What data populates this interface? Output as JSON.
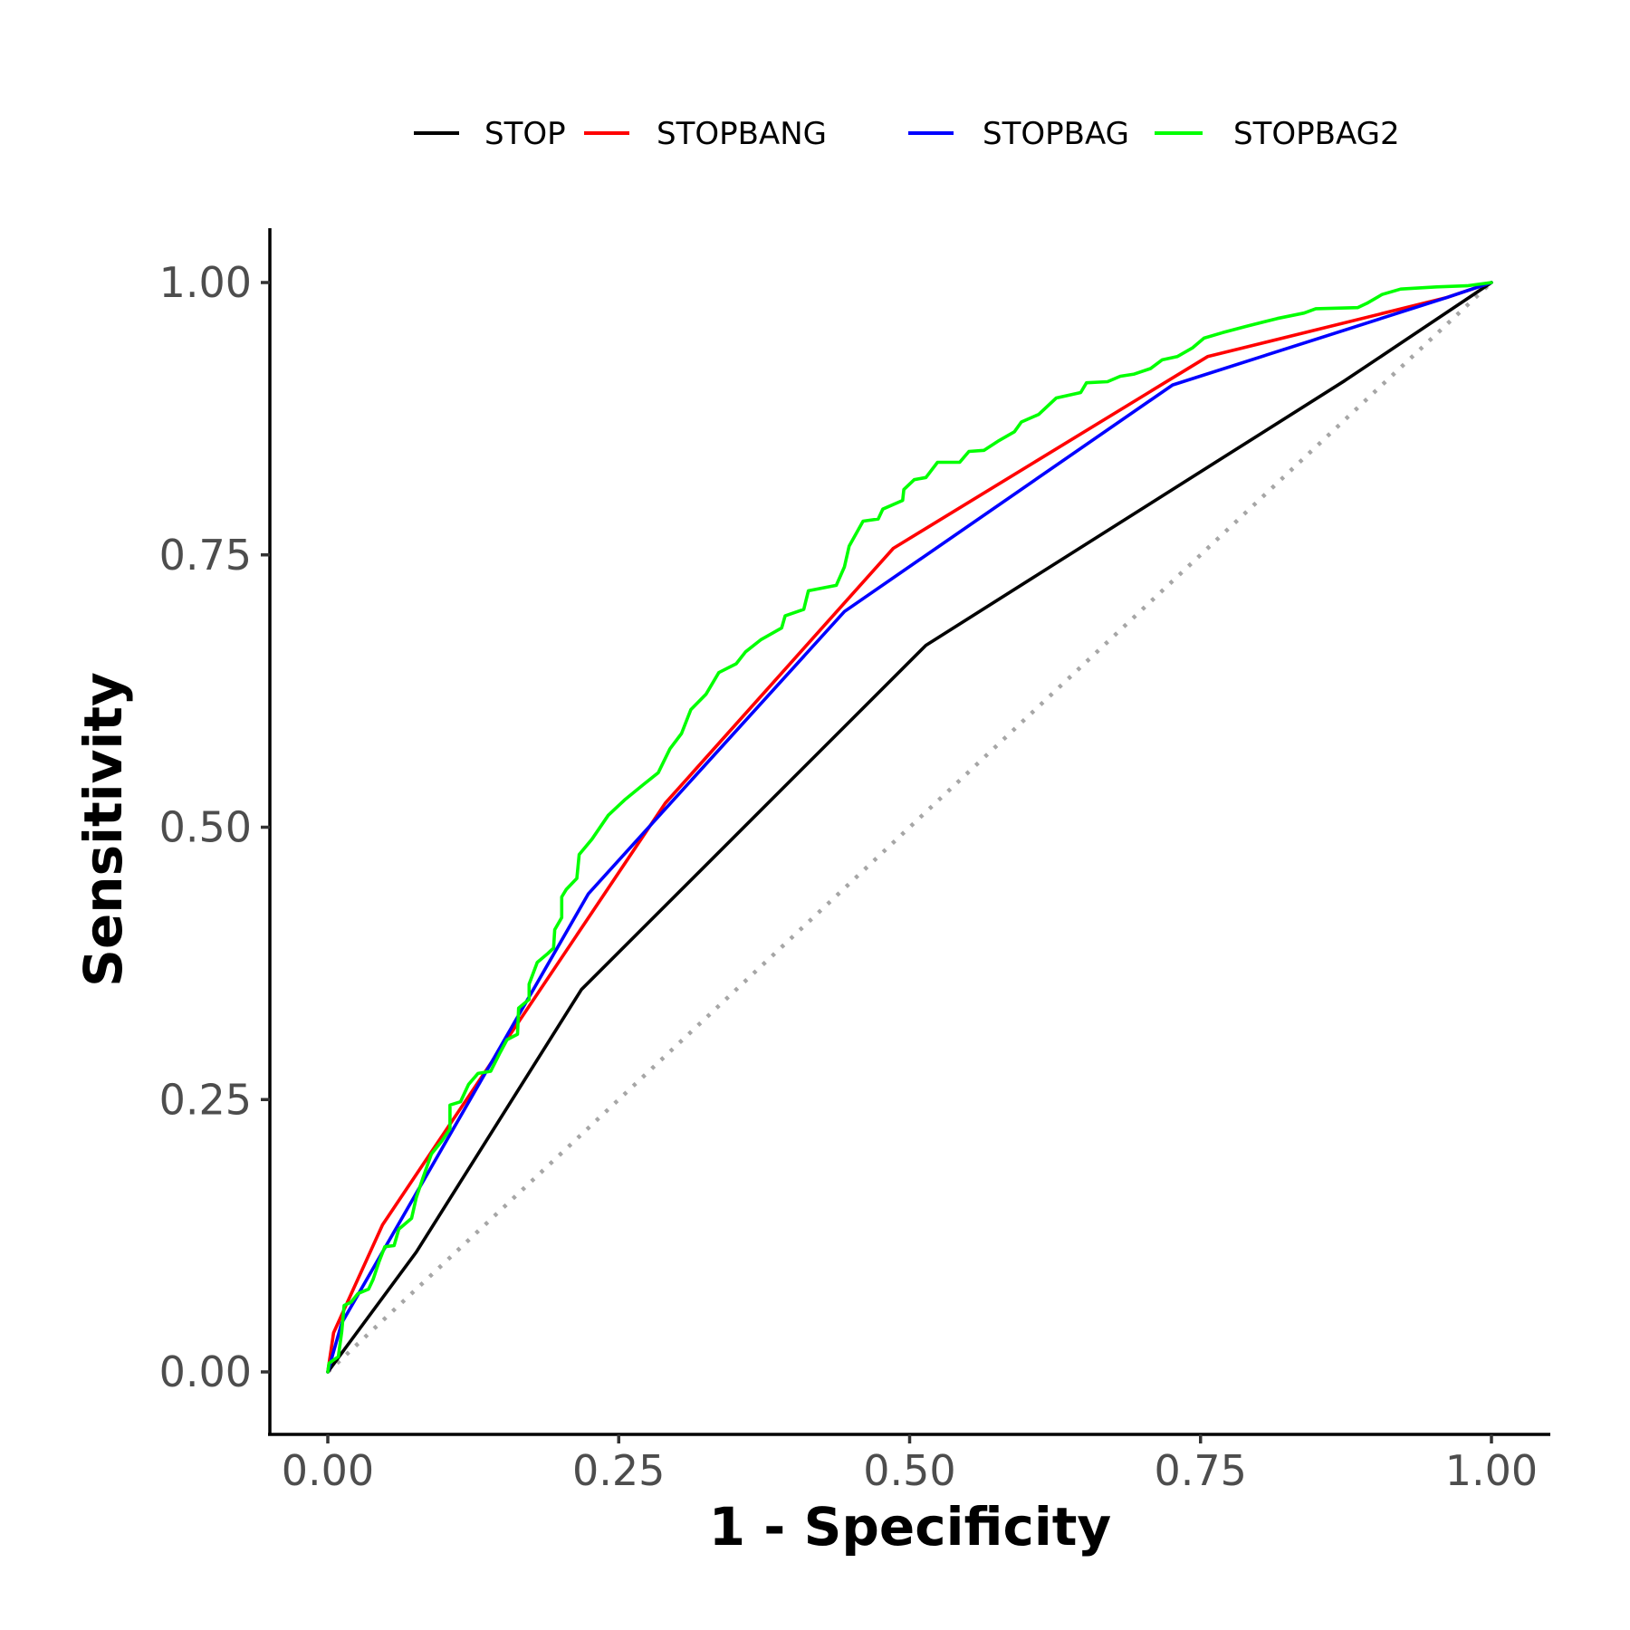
{
  "chart_data": {
    "type": "line",
    "title": "",
    "xlabel": "1 - Specificity",
    "ylabel": "Sensitivity",
    "xlim": [
      0,
      1
    ],
    "ylim": [
      0,
      1
    ],
    "x_ticks": [
      0,
      0.25,
      0.5,
      0.75,
      1
    ],
    "y_ticks": [
      0,
      0.25,
      0.5,
      0.75,
      1
    ],
    "x_tick_labels": [
      "0.00",
      "0.25",
      "0.50",
      "0.75",
      "1.00"
    ],
    "y_tick_labels": [
      "0.00",
      "0.25",
      "0.50",
      "0.75",
      "1.00"
    ],
    "grid": false,
    "legend_position": "top",
    "reference_line": {
      "name": "chance",
      "style": "dotted",
      "color": "#a6a6a6",
      "x": [
        0,
        1
      ],
      "y": [
        0,
        1
      ]
    },
    "series": [
      {
        "name": "STOP",
        "color": "#000000",
        "x": [
          0,
          0.076,
          0.218,
          0.514,
          0.874,
          1
        ],
        "y": [
          0,
          0.11,
          0.351,
          0.667,
          0.91,
          1
        ]
      },
      {
        "name": "STOPBANG",
        "color": "#ff0000",
        "x": [
          0,
          0.005,
          0.047,
          0.29,
          0.486,
          0.756,
          0.961,
          1
        ],
        "y": [
          0,
          0.036,
          0.135,
          0.522,
          0.756,
          0.932,
          0.986,
          1
        ]
      },
      {
        "name": "STOPBAG",
        "color": "#0000ff",
        "x": [
          0,
          0.012,
          0.224,
          0.444,
          0.726,
          0.961,
          1
        ],
        "y": [
          0,
          0.045,
          0.439,
          0.698,
          0.906,
          0.986,
          1
        ]
      },
      {
        "name": "STOPBAG2",
        "color": "#00ff00",
        "x": [
          0,
          0.001,
          0.009,
          0.012,
          0.014,
          0.02,
          0.026,
          0.035,
          0.039,
          0.044,
          0.049,
          0.057,
          0.061,
          0.072,
          0.076,
          0.082,
          0.089,
          0.098,
          0.105,
          0.105,
          0.114,
          0.121,
          0.129,
          0.14,
          0.148,
          0.154,
          0.163,
          0.164,
          0.173,
          0.173,
          0.18,
          0.189,
          0.194,
          0.195,
          0.201,
          0.201,
          0.205,
          0.214,
          0.216,
          0.227,
          0.241,
          0.255,
          0.271,
          0.284,
          0.294,
          0.304,
          0.312,
          0.325,
          0.336,
          0.351,
          0.359,
          0.372,
          0.39,
          0.393,
          0.409,
          0.413,
          0.437,
          0.444,
          0.448,
          0.46,
          0.473,
          0.477,
          0.494,
          0.495,
          0.504,
          0.514,
          0.524,
          0.543,
          0.551,
          0.564,
          0.577,
          0.59,
          0.596,
          0.611,
          0.619,
          0.626,
          0.647,
          0.652,
          0.67,
          0.681,
          0.693,
          0.707,
          0.717,
          0.73,
          0.743,
          0.753,
          0.769,
          0.79,
          0.816,
          0.839,
          0.849,
          0.885,
          0.893,
          0.906,
          0.922,
          0.953,
          0.979,
          1
        ],
        "y": [
          0,
          0.008,
          0.014,
          0.037,
          0.061,
          0.064,
          0.072,
          0.076,
          0.085,
          0.101,
          0.115,
          0.116,
          0.131,
          0.141,
          0.16,
          0.179,
          0.2,
          0.212,
          0.223,
          0.245,
          0.248,
          0.264,
          0.274,
          0.276,
          0.293,
          0.305,
          0.31,
          0.334,
          0.342,
          0.356,
          0.376,
          0.384,
          0.389,
          0.406,
          0.417,
          0.436,
          0.443,
          0.453,
          0.475,
          0.489,
          0.511,
          0.525,
          0.539,
          0.55,
          0.572,
          0.586,
          0.608,
          0.622,
          0.642,
          0.65,
          0.661,
          0.672,
          0.683,
          0.694,
          0.7,
          0.717,
          0.722,
          0.739,
          0.758,
          0.781,
          0.783,
          0.792,
          0.8,
          0.81,
          0.819,
          0.821,
          0.835,
          0.835,
          0.845,
          0.846,
          0.855,
          0.863,
          0.872,
          0.879,
          0.887,
          0.894,
          0.899,
          0.908,
          0.909,
          0.914,
          0.916,
          0.921,
          0.929,
          0.932,
          0.94,
          0.949,
          0.954,
          0.96,
          0.967,
          0.972,
          0.976,
          0.977,
          0.981,
          0.989,
          0.994,
          0.996,
          0.997,
          1
        ]
      }
    ]
  }
}
